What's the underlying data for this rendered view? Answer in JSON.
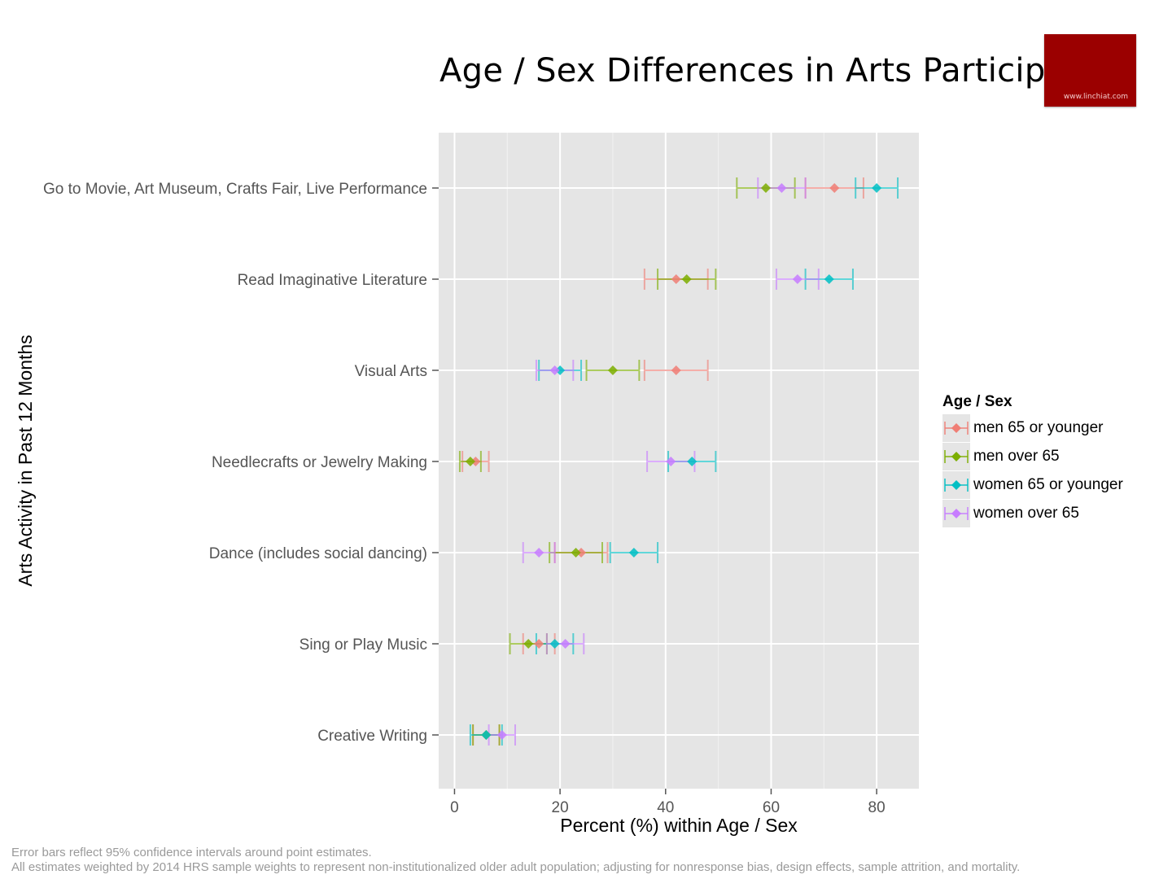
{
  "logo": {
    "text": "www.linchiat.com",
    "color": "#9b0000"
  },
  "chart_data": {
    "type": "scatter",
    "title": "Age / Sex Differences in Arts Participation",
    "xlabel": "Percent (%) within Age / Sex",
    "ylabel": "Arts Activity in Past 12 Months",
    "xlim": [
      -3,
      88
    ],
    "xticks": [
      0,
      20,
      40,
      60,
      80
    ],
    "grid": true,
    "legend_title": "Age / Sex",
    "legend_position": "right",
    "categories": [
      "Go to Movie, Art Museum, Crafts Fair, Live Performance",
      "Read Imaginative Literature",
      "Visual Arts",
      "Needlecrafts or Jewelry Making",
      "Dance (includes social dancing)",
      "Sing or Play Music",
      "Creative Writing"
    ],
    "series": [
      {
        "name": "men 65 or younger",
        "color": "#f07e75",
        "values": [
          72,
          42,
          42,
          4,
          24,
          16,
          6
        ],
        "lower": [
          66.5,
          36,
          36,
          1.5,
          19,
          13,
          3.5
        ],
        "upper": [
          77.5,
          48,
          48,
          6.5,
          29,
          19,
          8.5
        ]
      },
      {
        "name": "men over 65",
        "color": "#7cae00",
        "values": [
          59,
          44,
          30,
          3,
          23,
          14,
          6
        ],
        "lower": [
          53.5,
          38.5,
          25,
          1,
          18,
          10.5,
          3.5
        ],
        "upper": [
          64.5,
          49.5,
          35,
          5,
          28,
          17.5,
          8.5
        ]
      },
      {
        "name": "women 65 or younger",
        "color": "#00bfc4",
        "values": [
          80,
          71,
          20,
          45,
          34,
          19,
          6
        ],
        "lower": [
          76,
          66.5,
          16,
          40.5,
          29.5,
          15.5,
          3
        ],
        "upper": [
          84,
          75.5,
          24,
          49.5,
          38.5,
          22.5,
          9
        ]
      },
      {
        "name": "women over 65",
        "color": "#c77cff",
        "values": [
          62,
          65,
          19,
          41,
          16,
          21,
          9
        ],
        "lower": [
          57.5,
          61,
          15.5,
          36.5,
          13,
          17.5,
          6.5
        ],
        "upper": [
          66.5,
          69,
          22.5,
          45.5,
          19,
          24.5,
          11.5
        ]
      }
    ]
  },
  "footnotes": [
    "Error bars reflect 95% confidence intervals around point estimates.",
    "All estimates weighted by 2014 HRS sample weights to represent non-institutionalized older adult population; adjusting for nonresponse bias, design effects, sample attrition, and mortality."
  ]
}
